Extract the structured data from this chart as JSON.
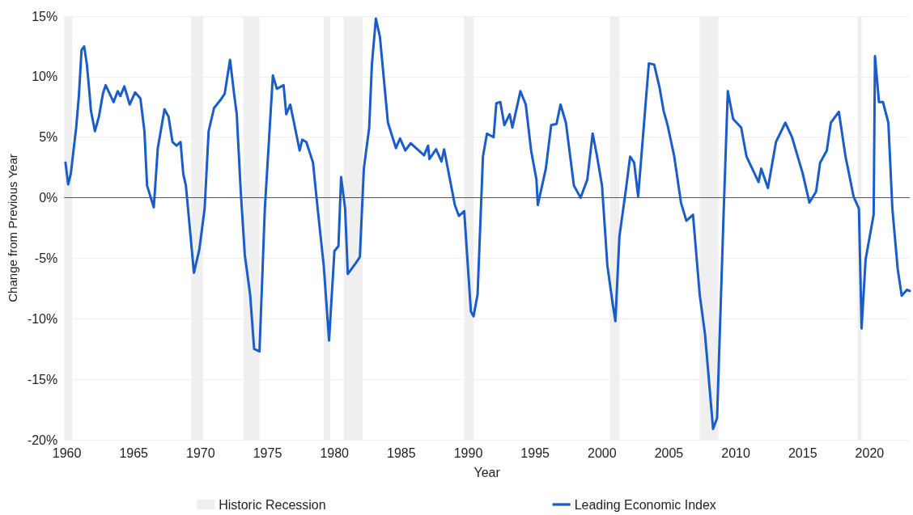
{
  "chart_data": {
    "type": "line",
    "xlabel": "Year",
    "ylabel": "Change from Previous Year",
    "legend": "bottom",
    "grid": "y",
    "marker": "none",
    "line_style": "solid",
    "xlim": [
      1959.8,
      2023
    ],
    "xticks": [
      1960,
      1965,
      1970,
      1975,
      1980,
      1985,
      1990,
      1995,
      2000,
      2005,
      2010,
      2015,
      2020
    ],
    "ylim": [
      -20,
      15
    ],
    "yticks": [
      {
        "value": -20,
        "label": "-20%"
      },
      {
        "value": -15,
        "label": "-15%"
      },
      {
        "value": -10,
        "label": "-10%"
      },
      {
        "value": -5,
        "label": "-5%"
      },
      {
        "value": 0,
        "label": "0%"
      },
      {
        "value": 5,
        "label": "5%"
      },
      {
        "value": 10,
        "label": "10%"
      },
      {
        "value": 15,
        "label": "15%"
      }
    ],
    "ref_lines": [
      {
        "axis": "y",
        "value": 0,
        "color": "#555555"
      }
    ],
    "bands": [
      {
        "axis": "x",
        "from": 1959.8,
        "to": 1960.4,
        "label": "Historic Recession",
        "color": "#efefef"
      },
      {
        "axis": "x",
        "from": 1969.3,
        "to": 1970.2,
        "color": "#efefef"
      },
      {
        "axis": "x",
        "from": 1973.2,
        "to": 1974.4,
        "color": "#efefef"
      },
      {
        "axis": "x",
        "from": 1979.2,
        "to": 1979.7,
        "color": "#efefef"
      },
      {
        "axis": "x",
        "from": 1980.7,
        "to": 1982.1,
        "color": "#efefef"
      },
      {
        "axis": "x",
        "from": 1989.7,
        "to": 1990.4,
        "color": "#efefef"
      },
      {
        "axis": "x",
        "from": 2000.6,
        "to": 2001.3,
        "color": "#efefef"
      },
      {
        "axis": "x",
        "from": 2007.3,
        "to": 2008.7,
        "color": "#efefef"
      },
      {
        "axis": "x",
        "from": 2019.1,
        "to": 2019.4,
        "color": "#efefef"
      }
    ],
    "series": [
      {
        "name": "Leading Economic Index",
        "color": "#1a5dc8",
        "x": [
          1959.9,
          1960.1,
          1960.3,
          1960.7,
          1960.9,
          1961.1,
          1961.3,
          1961.5,
          1961.7,
          1961.8,
          1962.1,
          1962.4,
          1962.7,
          1962.9,
          1963.5,
          1963.8,
          1964.0,
          1964.3,
          1964.7,
          1965.1,
          1965.5,
          1965.8,
          1966.0,
          1966.5,
          1966.8,
          1967.3,
          1967.6,
          1967.9,
          1968.2,
          1968.5,
          1968.7,
          1968.9,
          1969.5,
          1969.9,
          1970.3,
          1970.6,
          1971.0,
          1971.5,
          1971.8,
          1972.2,
          1972.5,
          1972.7,
          1973.0,
          1973.3,
          1973.7,
          1974.0,
          1974.4,
          1974.8,
          1975.4,
          1975.7,
          1976.2,
          1976.4,
          1976.7,
          1977.2,
          1977.4,
          1977.6,
          1977.9,
          1978.4,
          1978.7,
          1979.2,
          1979.6,
          1980.0,
          1980.3,
          1980.5,
          1980.8,
          1981.0,
          1981.6,
          1981.9,
          1982.2,
          1982.6,
          1982.8,
          1983.1,
          1983.4,
          1984.0,
          1984.6,
          1984.9,
          1985.3,
          1985.7,
          1986.2,
          1986.7,
          1987.0,
          1987.1,
          1987.6,
          1988.0,
          1988.2,
          1988.6,
          1989.0,
          1989.3,
          1989.7,
          1990.2,
          1990.4,
          1990.7,
          1991.1,
          1991.4,
          1991.9,
          1992.1,
          1992.4,
          1992.7,
          1993.1,
          1993.3,
          1993.9,
          1994.3,
          1994.7,
          1995.1,
          1995.2,
          1995.8,
          1996.2,
          1996.6,
          1996.9,
          1997.3,
          1997.9,
          1998.4,
          1998.9,
          1999.3,
          1999.6,
          2000.0,
          2000.4,
          2000.8,
          2001.0,
          2001.3,
          2001.8,
          2002.1,
          2002.4,
          2002.7,
          2003.5,
          2003.9,
          2004.3,
          2004.6,
          2004.9,
          2005.4,
          2005.9,
          2006.3,
          2006.8,
          2007.3,
          2007.7,
          2008.3,
          2008.6,
          2009.1,
          2009.4,
          2009.8,
          2010.4,
          2010.8,
          2011.7,
          2011.9,
          2012.4,
          2013.0,
          2013.7,
          2014.2,
          2015.0,
          2015.5,
          2016.0,
          2016.3,
          2016.8,
          2017.1,
          2017.7,
          2018.2,
          2018.8,
          2019.2,
          2019.4,
          2019.7,
          2020.3,
          2020.4,
          2020.7,
          2021.0,
          2021.4,
          2021.7,
          2022.1,
          2022.4,
          2022.8,
          2023.0
        ],
        "values": [
          2.9,
          1.1,
          2.0,
          5.8,
          8.4,
          12.2,
          12.5,
          11.0,
          8.6,
          7.2,
          5.5,
          6.7,
          8.6,
          9.3,
          7.9,
          8.8,
          8.4,
          9.2,
          7.7,
          8.7,
          8.2,
          5.5,
          1.0,
          -0.8,
          4.1,
          7.3,
          6.7,
          4.6,
          4.3,
          4.6,
          2.0,
          1.0,
          -6.2,
          -4.3,
          -0.9,
          5.5,
          7.4,
          8.1,
          8.6,
          11.4,
          8.6,
          6.9,
          0.5,
          -4.7,
          -8.0,
          -12.5,
          -12.7,
          -0.9,
          10.1,
          9.0,
          9.3,
          6.9,
          7.7,
          5.0,
          3.9,
          4.8,
          4.6,
          2.9,
          -0.4,
          -5.6,
          -11.8,
          -4.4,
          -4.0,
          1.7,
          -0.9,
          -6.3,
          -5.4,
          -4.9,
          2.4,
          5.8,
          11.0,
          14.8,
          13.3,
          6.2,
          4.1,
          4.9,
          3.9,
          4.5,
          4.0,
          3.5,
          4.3,
          3.2,
          4.0,
          3.0,
          4.0,
          1.7,
          -0.6,
          -1.5,
          -1.1,
          -9.4,
          -9.8,
          -8.0,
          3.4,
          5.3,
          5.0,
          7.8,
          7.9,
          6.0,
          6.9,
          5.8,
          8.8,
          7.7,
          3.9,
          1.5,
          -0.6,
          2.4,
          6.0,
          6.1,
          7.7,
          6.2,
          1.0,
          0.0,
          1.5,
          5.3,
          3.6,
          1.0,
          -5.6,
          -8.8,
          -10.2,
          -3.2,
          0.8,
          3.4,
          2.9,
          0.1,
          11.1,
          11.0,
          9.1,
          7.2,
          6.0,
          3.4,
          -0.4,
          -1.9,
          -1.4,
          -8.0,
          -11.3,
          -19.1,
          -18.2,
          -0.9,
          8.8,
          6.5,
          5.8,
          3.4,
          1.3,
          2.4,
          0.8,
          4.6,
          6.2,
          5.0,
          2.0,
          -0.4,
          0.5,
          2.9,
          3.9,
          6.2,
          7.1,
          3.4,
          0.1,
          -0.9,
          -10.8,
          -5.1,
          -1.4,
          11.7,
          7.9,
          7.9,
          6.2,
          -0.9,
          -5.9,
          -8.1,
          -7.6,
          -7.7
        ]
      }
    ]
  }
}
